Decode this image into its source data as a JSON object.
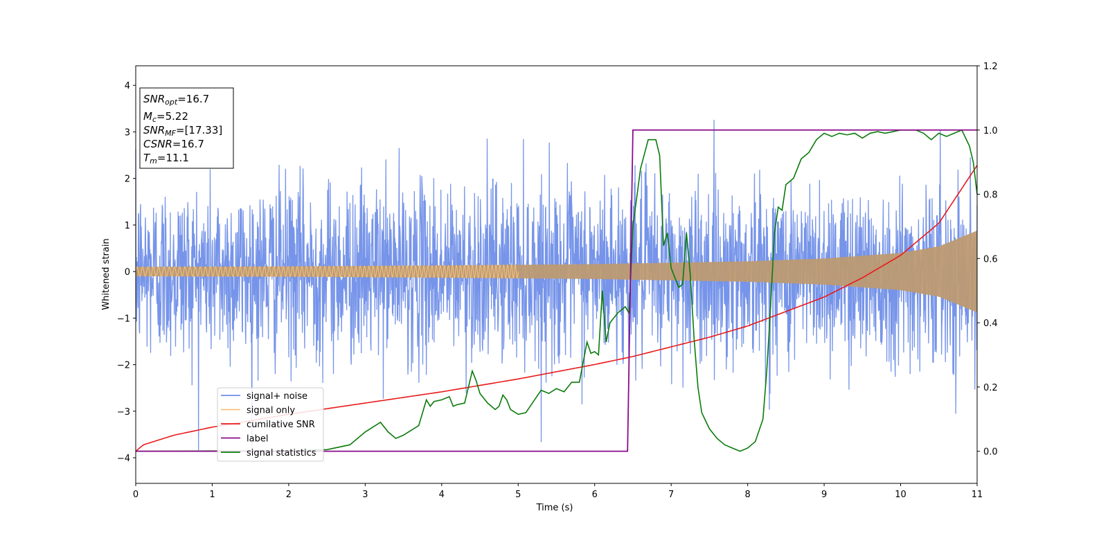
{
  "chart_data": {
    "type": "line",
    "xlabel": "Time (s)",
    "ylabel": "Whitened strain",
    "xlim": [
      0,
      11
    ],
    "ylim": [
      -4.55,
      4.42
    ],
    "y2lim": [
      -0.1,
      1.2
    ],
    "x_ticks": [
      "0",
      "1",
      "2",
      "3",
      "4",
      "5",
      "6",
      "7",
      "8",
      "9",
      "10",
      "11"
    ],
    "y_ticks": [
      "4",
      "3",
      "2",
      "1",
      "0",
      "−1",
      "−2",
      "−3",
      "−4"
    ],
    "y2_ticks": [
      "1.2",
      "1.0",
      "0.8",
      "0.6",
      "0.4",
      "0.2",
      "0.0"
    ],
    "grid": false,
    "legend_position": "lower-left",
    "series": [
      {
        "name": "signal+ noise",
        "color": "#6f8ee8",
        "axis": "left",
        "description_values": "noisy whitened strain, amplitude roughly within ±2.4 with spikes up to ±3.8"
      },
      {
        "name": "signal only",
        "color": "#f5c07a",
        "axis": "left",
        "envelope": {
          "t": [
            0,
            2,
            4,
            6,
            8,
            9,
            10,
            10.5,
            11
          ],
          "amplitude": [
            0.1,
            0.11,
            0.13,
            0.16,
            0.22,
            0.28,
            0.4,
            0.54,
            0.88
          ]
        }
      },
      {
        "name": "cumilative SNR",
        "color": "#e8191a",
        "axis": "right",
        "x": [
          0,
          0.1,
          0.5,
          1,
          2,
          3,
          4,
          5,
          6,
          6.5,
          7,
          7.5,
          8,
          8.5,
          9,
          9.5,
          10,
          10.5,
          11
        ],
        "y": [
          0.0,
          0.02,
          0.05,
          0.075,
          0.115,
          0.15,
          0.185,
          0.225,
          0.27,
          0.295,
          0.325,
          0.355,
          0.39,
          0.435,
          0.48,
          0.54,
          0.61,
          0.71,
          0.89
        ]
      },
      {
        "name": "label",
        "color": "#8b0a8b",
        "axis": "right",
        "x": [
          0,
          6.43,
          6.5,
          11
        ],
        "y": [
          0,
          0,
          1,
          1
        ]
      },
      {
        "name": "signal statistics",
        "color": "#0a7a0a",
        "axis": "right",
        "x": [
          0,
          1,
          2,
          2.5,
          2.8,
          3.0,
          3.2,
          3.3,
          3.4,
          3.5,
          3.6,
          3.7,
          3.8,
          3.85,
          3.9,
          4.0,
          4.1,
          4.15,
          4.2,
          4.3,
          4.4,
          4.45,
          4.5,
          4.6,
          4.7,
          4.75,
          4.8,
          4.85,
          4.9,
          5.0,
          5.1,
          5.2,
          5.3,
          5.4,
          5.5,
          5.6,
          5.7,
          5.8,
          5.9,
          5.95,
          6.0,
          6.05,
          6.1,
          6.15,
          6.2,
          6.3,
          6.4,
          6.45,
          6.5,
          6.6,
          6.7,
          6.8,
          6.85,
          6.9,
          6.95,
          7.0,
          7.1,
          7.15,
          7.2,
          7.25,
          7.3,
          7.35,
          7.4,
          7.5,
          7.6,
          7.7,
          7.8,
          7.9,
          8.0,
          8.1,
          8.2,
          8.25,
          8.3,
          8.35,
          8.4,
          8.45,
          8.5,
          8.6,
          8.7,
          8.8,
          8.9,
          9.0,
          9.1,
          9.2,
          9.3,
          9.4,
          9.5,
          9.6,
          9.7,
          9.8,
          9.9,
          10.0,
          10.1,
          10.2,
          10.3,
          10.4,
          10.5,
          10.6,
          10.7,
          10.8,
          10.9,
          10.95,
          11.0
        ],
        "y": [
          0,
          0.001,
          0.001,
          0.005,
          0.02,
          0.06,
          0.09,
          0.06,
          0.04,
          0.05,
          0.065,
          0.08,
          0.16,
          0.14,
          0.155,
          0.16,
          0.17,
          0.14,
          0.145,
          0.15,
          0.25,
          0.22,
          0.18,
          0.15,
          0.13,
          0.14,
          0.175,
          0.16,
          0.13,
          0.115,
          0.12,
          0.155,
          0.19,
          0.18,
          0.195,
          0.185,
          0.215,
          0.215,
          0.34,
          0.305,
          0.31,
          0.3,
          0.5,
          0.34,
          0.4,
          0.43,
          0.45,
          0.43,
          0.7,
          0.88,
          0.97,
          0.97,
          0.92,
          0.64,
          0.68,
          0.57,
          0.51,
          0.52,
          0.68,
          0.55,
          0.35,
          0.2,
          0.12,
          0.07,
          0.04,
          0.02,
          0.01,
          0.0,
          0.01,
          0.03,
          0.1,
          0.25,
          0.45,
          0.68,
          0.76,
          0.75,
          0.83,
          0.85,
          0.91,
          0.93,
          0.97,
          0.99,
          0.98,
          0.99,
          0.985,
          0.99,
          0.975,
          0.99,
          0.995,
          0.99,
          0.995,
          1.0,
          1.0,
          1.0,
          0.99,
          0.97,
          0.99,
          0.98,
          0.99,
          1.0,
          0.95,
          0.9,
          0.8
        ]
      }
    ],
    "annotation": {
      "lines": [
        {
          "base": "SNR",
          "sub": "opt",
          "value": "=16.7"
        },
        {
          "base": "M",
          "sub": "c",
          "value": "=5.22"
        },
        {
          "base": "SNR",
          "sub": "MF",
          "value": "=[17.33]"
        },
        {
          "base": "CSNR",
          "sub": "",
          "value": "=16.7"
        },
        {
          "base": "T",
          "sub": "m",
          "value": "=11.1"
        }
      ]
    }
  }
}
